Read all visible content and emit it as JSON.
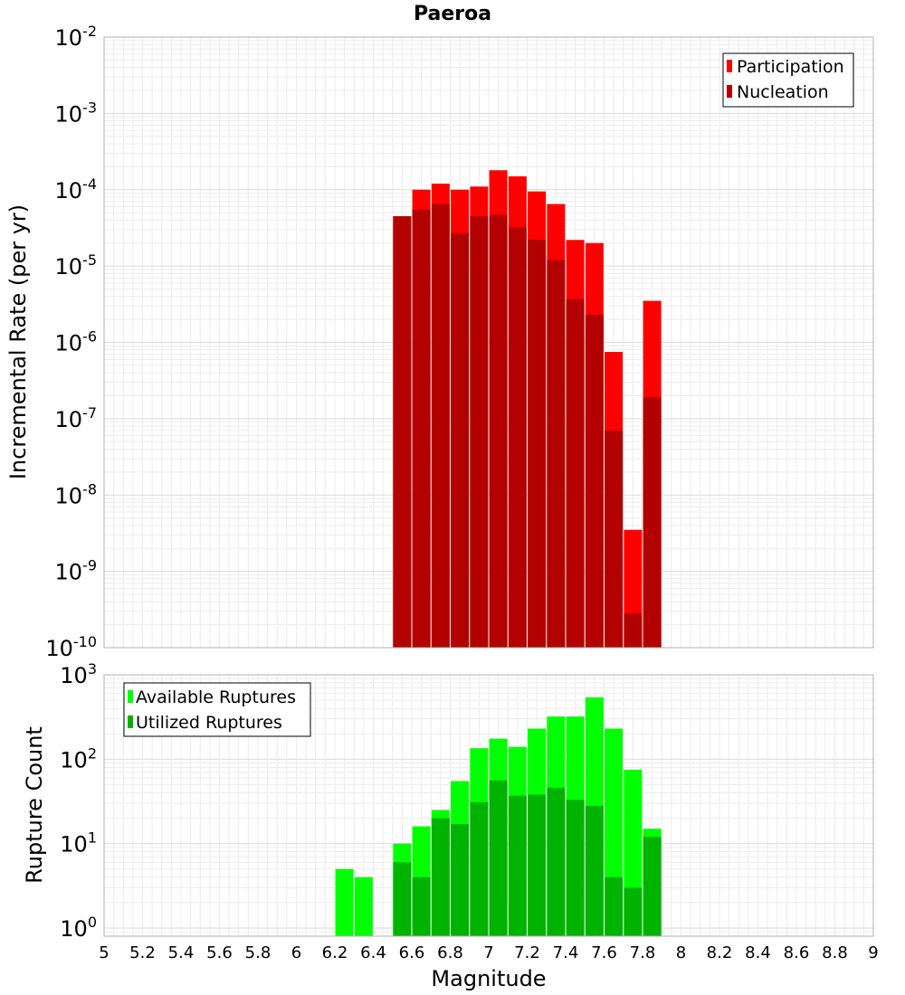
{
  "chart_data": [
    {
      "type": "bar",
      "title": "Paeroa",
      "xlabel": "Magnitude",
      "ylabel": "Incremental Rate (per yr)",
      "xlim": [
        5,
        9
      ],
      "ylim": [
        1e-10,
        0.01
      ],
      "y_scale": "log",
      "grid": true,
      "legend_position": "top-right",
      "bar_centers": [
        6.55,
        6.65,
        6.75,
        6.85,
        6.95,
        7.05,
        7.15,
        7.25,
        7.35,
        7.45,
        7.55,
        7.65,
        7.75,
        7.85
      ],
      "series": [
        {
          "name": "Participation",
          "color": "#ff0000",
          "values": [
            4.5e-05,
            0.0001,
            0.00012,
            0.0001,
            0.00011,
            0.00018,
            0.00015,
            9.5e-05,
            6.5e-05,
            2.2e-05,
            2e-05,
            7.5e-07,
            3.5e-09,
            3.5e-06
          ]
        },
        {
          "name": "Nucleation",
          "color": "#b30000",
          "values": [
            4.5e-05,
            5.5e-05,
            6.5e-05,
            2.7e-05,
            4.5e-05,
            4.7e-05,
            3.2e-05,
            2.2e-05,
            1.2e-05,
            3.7e-06,
            2.3e-06,
            7e-08,
            2.8e-10,
            1.9e-07
          ]
        }
      ],
      "y_tick_exponents": [
        "-2",
        "-3",
        "-4",
        "-5",
        "-6",
        "-7",
        "-8",
        "-9",
        "-10"
      ]
    },
    {
      "type": "bar",
      "title": "",
      "xlabel": "Magnitude",
      "ylabel": "Rupture Count",
      "xlim": [
        5,
        9
      ],
      "ylim": [
        0.8,
        1000
      ],
      "y_scale": "log",
      "grid": true,
      "legend_position": "top-left",
      "bar_centers": [
        6.25,
        6.35,
        6.55,
        6.65,
        6.75,
        6.85,
        6.95,
        7.05,
        7.15,
        7.25,
        7.35,
        7.45,
        7.55,
        7.65,
        7.75,
        7.85
      ],
      "series": [
        {
          "name": "Available Ruptures",
          "color": "#00ff00",
          "values": [
            5,
            4,
            10,
            16,
            25,
            55,
            135,
            175,
            140,
            230,
            320,
            320,
            540,
            230,
            75,
            15
          ]
        },
        {
          "name": "Utilized Ruptures",
          "color": "#00b300",
          "values": [
            0,
            0,
            6,
            4,
            20,
            17,
            31,
            56,
            37,
            38,
            46,
            33,
            28,
            4,
            3,
            12
          ]
        }
      ],
      "y_tick_exponents": [
        "3",
        "2",
        "1",
        "0"
      ]
    }
  ],
  "x_ticks": [
    "5",
    "5.2",
    "5.4",
    "5.6",
    "5.8",
    "6",
    "6.2",
    "6.4",
    "6.6",
    "6.8",
    "7",
    "7.2",
    "7.4",
    "7.6",
    "7.8",
    "8",
    "8.2",
    "8.4",
    "8.6",
    "8.8",
    "9"
  ],
  "y_tick_base": "10"
}
